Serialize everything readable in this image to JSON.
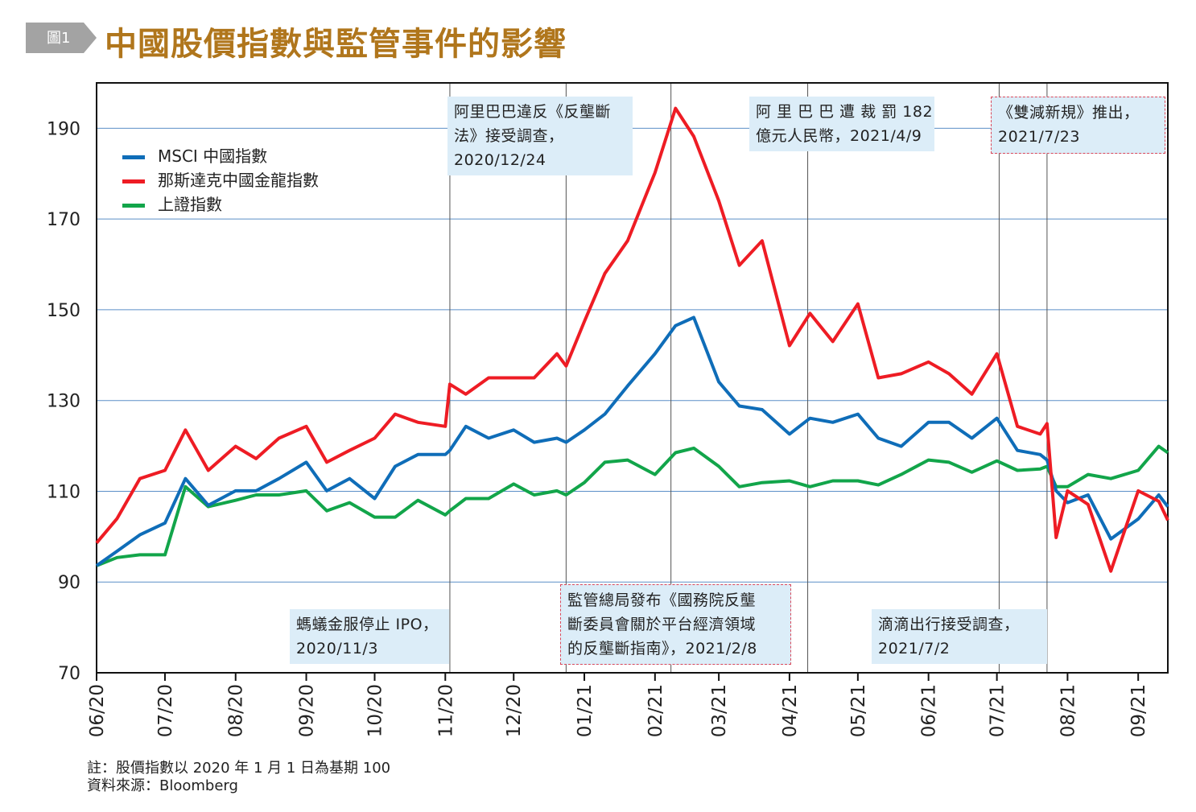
{
  "figure": {
    "badge": "圖1",
    "title": "中國股價指數與監管事件的影響"
  },
  "notes": {
    "note": "註：股價指數以 2020 年 1 月 1 日為基期 100",
    "source": "資料來源：Bloomberg"
  },
  "annotations": [
    {
      "date": "2020-11-03",
      "lines": [
        "螞蟻金服停止 IPO，",
        "2020/11/3"
      ],
      "style": "filled"
    },
    {
      "date": "2020-12-24",
      "lines": [
        "阿里巴巴違反《反壟斷",
        "法》接受調查，",
        "2020/12/24"
      ],
      "style": "filled"
    },
    {
      "date": "2021-02-08",
      "lines": [
        "監管總局發布《國務院反壟",
        "斷委員會關於平台經濟領域",
        "的反壟斷指南》，2021/2/8"
      ],
      "style": "dotted"
    },
    {
      "date": "2021-04-09",
      "lines": [
        "阿 里 巴 巴 遭 裁 罰 182",
        "億元人民幣，2021/4/9"
      ],
      "style": "filled"
    },
    {
      "date": "2021-07-02",
      "lines": [
        "滴滴出行接受調查，",
        "2021/7/2"
      ],
      "style": "filled"
    },
    {
      "date": "2021-07-23",
      "lines": [
        "《雙減新規》推出，",
        "2021/7/23"
      ],
      "style": "dotted"
    }
  ],
  "colors": {
    "title": "#b0761c",
    "grid": "#5b8fc7",
    "annotation_fill": "#dcedf8",
    "annotation_border": "#d9485b"
  },
  "chart_data": {
    "type": "line",
    "title": "中國股價指數與監管事件的影響",
    "xlabel": "",
    "ylabel": "",
    "ylim": [
      70,
      200
    ],
    "xlim": [
      "2020-06-01",
      "2021-09-14"
    ],
    "yticks": [
      70,
      90,
      110,
      130,
      150,
      170,
      190
    ],
    "grid": "horizontal",
    "legend": "top-left",
    "xticks": [
      {
        "date": "2020-06-01",
        "label": "06/20"
      },
      {
        "date": "2020-07-01",
        "label": "07/20"
      },
      {
        "date": "2020-08-01",
        "label": "08/20"
      },
      {
        "date": "2020-09-01",
        "label": "09/20"
      },
      {
        "date": "2020-10-01",
        "label": "10/20"
      },
      {
        "date": "2020-11-01",
        "label": "11/20"
      },
      {
        "date": "2020-12-01",
        "label": "12/20"
      },
      {
        "date": "2021-01-01",
        "label": "01/21"
      },
      {
        "date": "2021-02-01",
        "label": "02/21"
      },
      {
        "date": "2021-03-01",
        "label": "03/21"
      },
      {
        "date": "2021-04-01",
        "label": "04/21"
      },
      {
        "date": "2021-05-01",
        "label": "05/21"
      },
      {
        "date": "2021-06-01",
        "label": "06/21"
      },
      {
        "date": "2021-07-01",
        "label": "07/21"
      },
      {
        "date": "2021-08-01",
        "label": "08/21"
      },
      {
        "date": "2021-09-01",
        "label": "09/21"
      }
    ],
    "x": [
      "2020-06-01",
      "2020-06-10",
      "2020-06-20",
      "2020-07-01",
      "2020-07-10",
      "2020-07-20",
      "2020-08-01",
      "2020-08-10",
      "2020-08-20",
      "2020-09-01",
      "2020-09-10",
      "2020-09-20",
      "2020-10-01",
      "2020-10-10",
      "2020-10-20",
      "2020-11-01",
      "2020-11-03",
      "2020-11-10",
      "2020-11-20",
      "2020-12-01",
      "2020-12-10",
      "2020-12-20",
      "2020-12-24",
      "2021-01-01",
      "2021-01-10",
      "2021-01-20",
      "2021-02-01",
      "2021-02-10",
      "2021-02-18",
      "2021-03-01",
      "2021-03-10",
      "2021-03-20",
      "2021-04-01",
      "2021-04-10",
      "2021-04-20",
      "2021-05-01",
      "2021-05-10",
      "2021-05-20",
      "2021-06-01",
      "2021-06-10",
      "2021-06-20",
      "2021-07-01",
      "2021-07-10",
      "2021-07-20",
      "2021-07-23",
      "2021-07-27",
      "2021-08-01",
      "2021-08-10",
      "2021-08-20",
      "2021-09-01",
      "2021-09-10",
      "2021-09-14"
    ],
    "series": [
      {
        "name": "MSCI 中國指數",
        "color": "#0f6db8",
        "values": [
          93.6,
          96.8,
          100.4,
          103,
          112.8,
          106.9,
          110.1,
          110.1,
          112.8,
          116.4,
          110.1,
          112.8,
          108.4,
          115.5,
          118.1,
          118.1,
          119,
          124.3,
          121.7,
          123.5,
          120.8,
          121.7,
          120.8,
          123.5,
          127,
          133.2,
          140.3,
          146.5,
          148.3,
          134.1,
          128.8,
          128,
          122.6,
          126.1,
          125.2,
          127,
          121.7,
          119.9,
          125.2,
          125.2,
          121.7,
          126.1,
          119,
          118.1,
          116.9,
          110.1,
          107.5,
          109.2,
          99.5,
          103.9,
          109.2,
          106.6
        ]
      },
      {
        "name": "那斯達克中國金龍指數",
        "color": "#ee1c24",
        "values": [
          98.6,
          104,
          112.8,
          114.6,
          123.5,
          114.6,
          119.9,
          117.2,
          121.7,
          124.3,
          116.4,
          119,
          121.7,
          127,
          125.2,
          124.3,
          133.6,
          131.4,
          135,
          135,
          135,
          140.3,
          137.6,
          147.4,
          158,
          165.2,
          180.2,
          194.4,
          188.2,
          174,
          159.8,
          165.2,
          142.1,
          149.2,
          143,
          151.3,
          135,
          135.9,
          138.5,
          135.9,
          131.4,
          140.3,
          124.3,
          122.6,
          124.9,
          99.8,
          110.1,
          107.1,
          92.4,
          110.1,
          107.8,
          103.6
        ]
      },
      {
        "name": "上證指數",
        "color": "#12a54a",
        "values": [
          93.6,
          95.4,
          96,
          96,
          111,
          106.6,
          108,
          109.2,
          109.2,
          110.1,
          105.7,
          107.5,
          104.3,
          104.3,
          108,
          104.8,
          105.7,
          108.4,
          108.4,
          111.6,
          109.2,
          110.1,
          109.2,
          111.9,
          116.4,
          116.9,
          113.7,
          118.5,
          119.5,
          115.5,
          111,
          111.9,
          112.3,
          111,
          112.3,
          112.3,
          111.4,
          113.7,
          116.9,
          116.4,
          114.2,
          116.7,
          114.6,
          114.9,
          115.5,
          111,
          111,
          113.7,
          112.8,
          114.6,
          119.9,
          118.5
        ]
      }
    ]
  }
}
